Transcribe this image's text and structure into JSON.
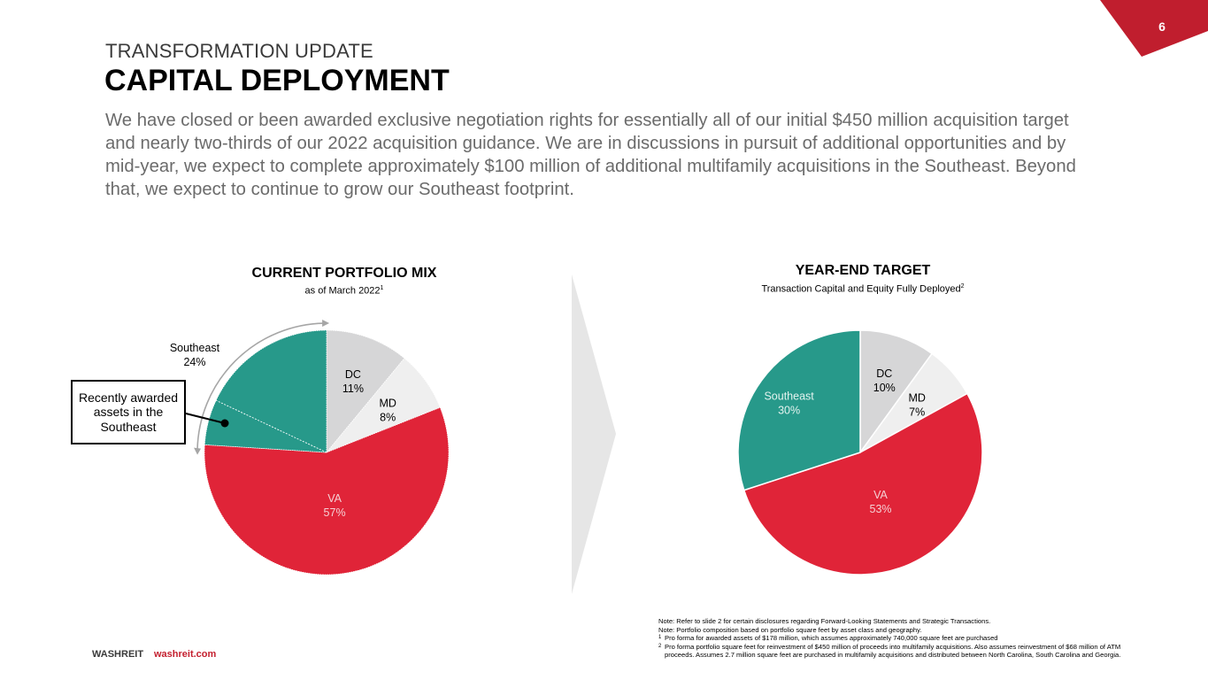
{
  "page": {
    "number": "6",
    "kicker": "TRANSFORMATION UPDATE",
    "title": "CAPITAL DEPLOYMENT",
    "body": "We have closed or been awarded exclusive negotiation rights for essentially all of our initial $450 million acquisition target and nearly two-thirds of our 2022 acquisition guidance. We are in discussions in pursuit of additional opportunities and by mid-year, we expect to complete approximately $100 million of additional multifamily acquisitions in the Southeast. Beyond that, we expect to continue to grow our Southeast footprint.",
    "accent_color": "#c4202f"
  },
  "callout": {
    "text": "Recently awarded assets in the Southeast"
  },
  "footer": {
    "brand": "WASHREIT",
    "url": "washreit.com"
  },
  "notes": {
    "lines": [
      "Note: Refer to slide 2 for certain disclosures regarding Forward-Looking Statements and Strategic Transactions.",
      "Note: Portfolio composition based on portfolio square feet by asset class and geography."
    ],
    "footnotes": [
      {
        "marker": "1",
        "text": "Pro forma for awarded assets of $178 million, which assumes approximately 740,000 square feet are purchased"
      },
      {
        "marker": "2",
        "text": "Pro forma portfolio square feet for reinvestment of $450 million of proceeds into multifamily acquisitions. Also assumes reinvestment of $68 million of ATM proceeds. Assumes 2.7 million square feet are purchased in multifamily acquisitions and distributed between North Carolina, South Carolina and Georgia."
      }
    ]
  },
  "chart_data": [
    {
      "type": "pie",
      "title": "CURRENT PORTFOLIO MIX",
      "subtitle": "as of March 2022",
      "subtitle_footnote": "1",
      "start": "12 o'clock, clockwise",
      "slices": [
        {
          "label": "DC",
          "value": 11,
          "display": "11%",
          "color": "#d6d6d7",
          "text_color": "#000000"
        },
        {
          "label": "MD",
          "value": 8,
          "display": "8%",
          "color": "#efefef",
          "text_color": "#000000"
        },
        {
          "label": "VA",
          "value": 57,
          "display": "57%",
          "color": "#e02438",
          "text_color": "#f5d0d4"
        },
        {
          "label": "Southeast",
          "value": 24,
          "display": "24%",
          "color": "#27998a",
          "text_color": "#000000",
          "label_outside": true,
          "sub_split": {
            "label": "Recently awarded assets in the Southeast",
            "approx_share": 6
          }
        }
      ]
    },
    {
      "type": "pie",
      "title": "YEAR-END TARGET",
      "subtitle": "Transaction Capital and Equity Fully Deployed",
      "subtitle_footnote": "2",
      "start": "12 o'clock, clockwise",
      "slices": [
        {
          "label": "DC",
          "value": 10,
          "display": "10%",
          "color": "#d6d6d7",
          "text_color": "#000000"
        },
        {
          "label": "MD",
          "value": 7,
          "display": "7%",
          "color": "#efefef",
          "text_color": "#000000"
        },
        {
          "label": "VA",
          "value": 53,
          "display": "53%",
          "color": "#e02438",
          "text_color": "#f5d0d4"
        },
        {
          "label": "Southeast",
          "value": 30,
          "display": "30%",
          "color": "#27998a",
          "text_color": "#e3f3ef"
        }
      ]
    }
  ]
}
